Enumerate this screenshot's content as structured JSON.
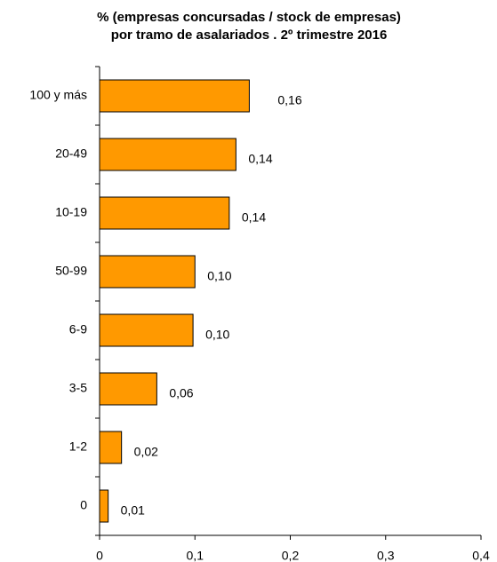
{
  "chart_data": {
    "type": "barh",
    "title": [
      "% (empresas concursadas / stock de empresas)",
      "por tramo de asalariados . 2º trimestre 2016"
    ],
    "categories": [
      "100 y más",
      "20-49",
      "10-19",
      "50-99",
      "6-9",
      "3-5",
      "1-2",
      "0"
    ],
    "values": [
      0.157,
      0.143,
      0.136,
      0.1,
      0.098,
      0.06,
      0.023,
      0.009
    ],
    "value_labels": [
      "0,16",
      "0,14",
      "0,14",
      "0,10",
      "0,10",
      "0,06",
      "0,02",
      "0,01"
    ],
    "color": "#ff9900",
    "xlim": [
      0,
      0.4
    ],
    "xticks": [
      0,
      {
        "value": 0.1,
        "label": "0,1"
      },
      {
        "value": 0.2,
        "label": "0,2"
      },
      {
        "value": 0.3,
        "label": "0,3"
      },
      {
        "value": 0.4,
        "label": "0,4"
      }
    ]
  }
}
